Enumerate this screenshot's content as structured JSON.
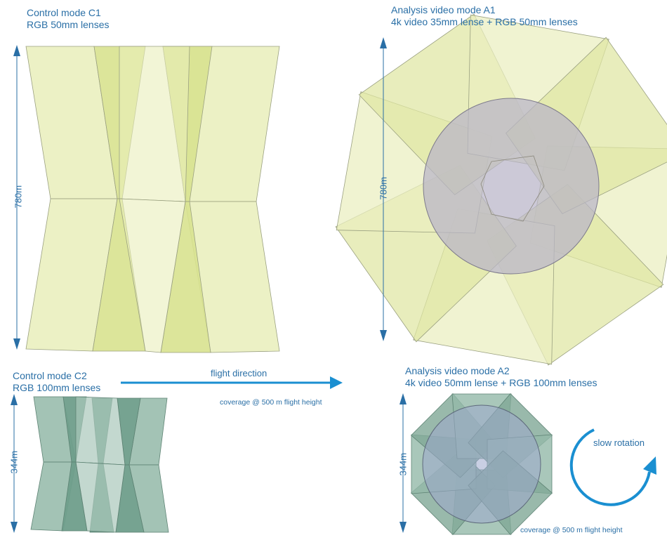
{
  "panels": {
    "c1": {
      "title": "Control mode C1",
      "subtitle": "RGB 50mm lenses",
      "dimension": "780m"
    },
    "a1": {
      "title": "Analysis video mode A1",
      "subtitle": "4k video 35mm lense + RGB 50mm lenses",
      "dimension": "780m"
    },
    "c2": {
      "title": "Control mode C2",
      "subtitle": "RGB 100mm lenses",
      "dimension": "344m"
    },
    "a2": {
      "title": "Analysis video mode A2",
      "subtitle": "4k video 50mm lense + RGB 100mm lenses",
      "dimension": "344m"
    }
  },
  "flight": {
    "label": "flight direction",
    "coverage_note": "coverage @ 500 m flight height"
  },
  "rotation": {
    "label": "slow rotation"
  },
  "footer": {
    "coverage_note": "coverage @ 500 m flight height"
  },
  "colors": {
    "accent": "#1a8fd1",
    "text": "#2a6fa6",
    "footprint_light": "#e6ecb0",
    "footprint_mid": "#d4e08a",
    "footprint_green": "#93b8a8",
    "footprint_dark_green": "#6f9e8b",
    "circle_gray": "#b9b6c8",
    "circle_blue": "#9aa6c8"
  }
}
